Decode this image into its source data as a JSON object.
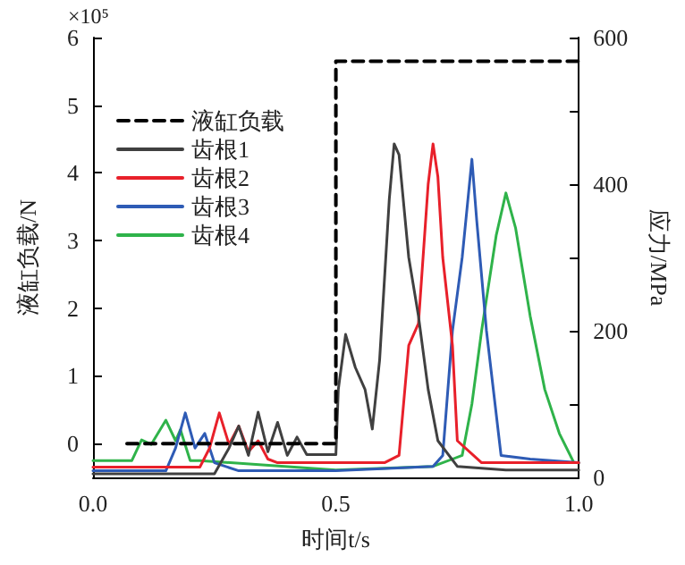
{
  "chart_data": {
    "type": "line",
    "xlabel": "时间t/s",
    "ylabel": "液缸负载/N",
    "y2label": "应力/MPa",
    "annotations": [
      "×10⁵"
    ],
    "xlim": [
      0,
      1
    ],
    "xticks": [
      {
        "value": 0,
        "label": "0.0"
      },
      {
        "value": 0.5,
        "label": "0.5"
      },
      {
        "value": 1,
        "label": "1.0"
      }
    ],
    "ylim": [
      -0.5,
      6
    ],
    "yticks": [
      0,
      1,
      2,
      3,
      4,
      5,
      6
    ],
    "y2lim": [
      0,
      600
    ],
    "y2ticks": [
      0,
      {
        "value": 100,
        "label": null
      },
      200,
      {
        "value": 300,
        "label": null
      },
      400,
      {
        "value": 500,
        "label": null
      },
      600
    ],
    "grid": false,
    "legend": "top left",
    "marker": "none",
    "series": [
      {
        "name": "液缸负载",
        "color": "#000000",
        "line_style": "dashed",
        "x": [
          0.07,
          0.5,
          0.5,
          1.0
        ],
        "values": [
          0,
          0,
          5.65,
          5.65
        ]
      },
      {
        "name": "齿根1",
        "color": "#404040",
        "axis": "y2",
        "x": [
          0,
          0.25,
          0.28,
          0.3,
          0.32,
          0.34,
          0.36,
          0.38,
          0.4,
          0.42,
          0.44,
          0.5,
          0.505,
          0.52,
          0.54,
          0.56,
          0.575,
          0.59,
          0.61,
          0.62,
          0.63,
          0.65,
          0.67,
          0.69,
          0.71,
          0.75,
          0.85,
          1.0
        ],
        "values": [
          5,
          5,
          40,
          70,
          30,
          89,
          35,
          75,
          30,
          55,
          31,
          31,
          120,
          195,
          150,
          120,
          66,
          160,
          380,
          455,
          440,
          300,
          220,
          120,
          50,
          15,
          10,
          10
        ]
      },
      {
        "name": "齿根2",
        "color": "#e8202a",
        "axis": "y2",
        "x": [
          0,
          0.22,
          0.24,
          0.26,
          0.28,
          0.3,
          0.32,
          0.34,
          0.36,
          0.38,
          0.5,
          0.6,
          0.63,
          0.65,
          0.67,
          0.69,
          0.7,
          0.71,
          0.72,
          0.74,
          0.75,
          0.8,
          1.0
        ],
        "values": [
          14,
          14,
          40,
          88,
          45,
          70,
          35,
          50,
          25,
          20,
          20,
          20,
          30,
          180,
          210,
          400,
          455,
          410,
          300,
          180,
          50,
          20,
          20
        ]
      },
      {
        "name": "齿根3",
        "color": "#2e5bb5",
        "axis": "y2",
        "x": [
          0,
          0.15,
          0.17,
          0.19,
          0.21,
          0.23,
          0.25,
          0.3,
          0.5,
          0.7,
          0.72,
          0.74,
          0.76,
          0.78,
          0.79,
          0.81,
          0.84,
          0.9,
          1.0
        ],
        "values": [
          9,
          9,
          40,
          88,
          40,
          60,
          20,
          9,
          9,
          15,
          30,
          200,
          300,
          434,
          350,
          200,
          30,
          25,
          20
        ]
      },
      {
        "name": "齿根4",
        "color": "#2fb34a",
        "axis": "y2",
        "x": [
          0,
          0.08,
          0.1,
          0.12,
          0.15,
          0.17,
          0.18,
          0.2,
          0.22,
          0.5,
          0.7,
          0.76,
          0.78,
          0.8,
          0.83,
          0.85,
          0.87,
          0.9,
          0.93,
          0.96,
          0.99,
          1.0
        ],
        "values": [
          23,
          23,
          51,
          45,
          78,
          50,
          65,
          23,
          23,
          10,
          15,
          30,
          100,
          200,
          330,
          388,
          340,
          220,
          120,
          60,
          20,
          20
        ]
      }
    ]
  }
}
